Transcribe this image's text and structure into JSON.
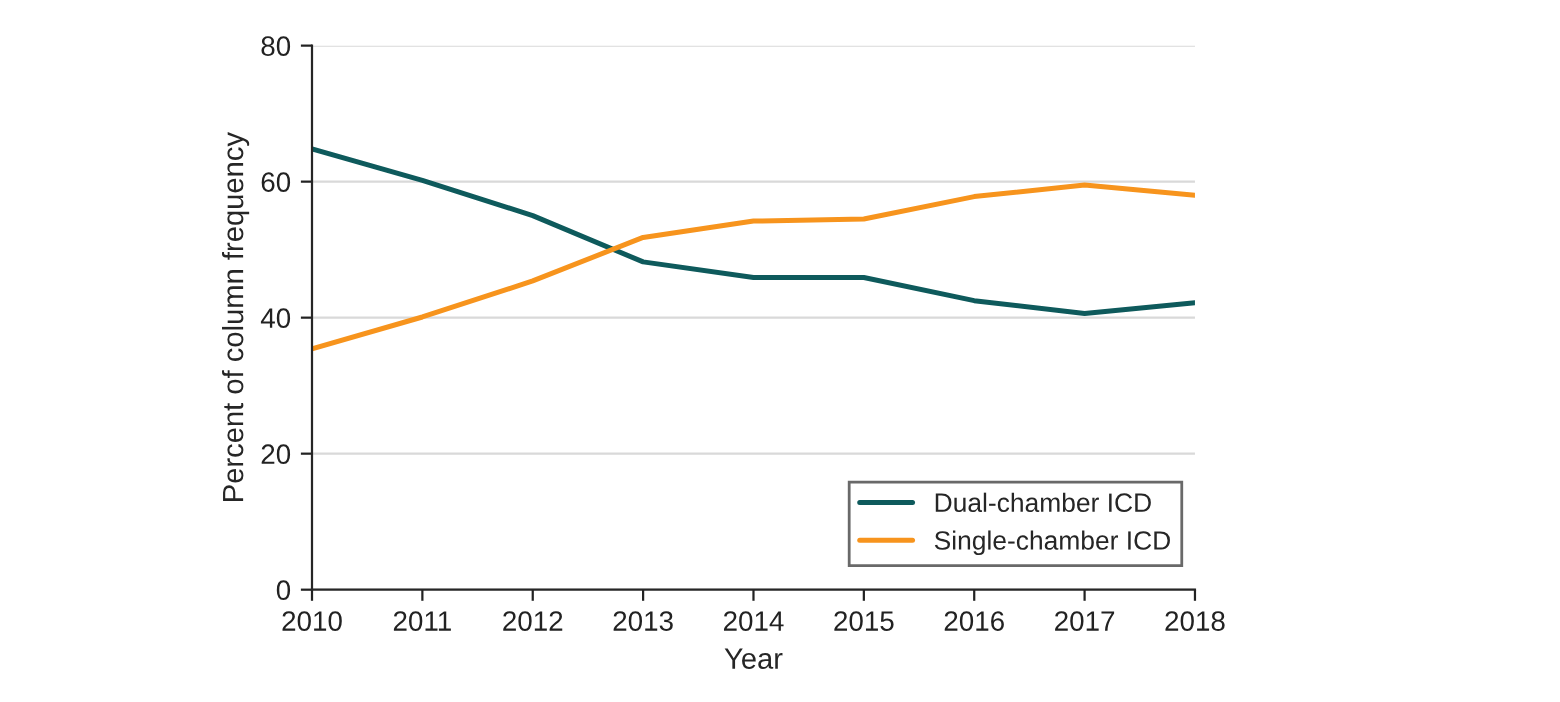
{
  "chart_data": {
    "type": "line",
    "xlabel": "Year",
    "ylabel": "Percent of column frequency",
    "x": [
      2010,
      2011,
      2012,
      2013,
      2014,
      2015,
      2016,
      2017,
      2018
    ],
    "xlim": [
      2010,
      2018
    ],
    "xticks": [
      2010,
      2011,
      2012,
      2013,
      2014,
      2015,
      2016,
      2017,
      2018
    ],
    "ylim": [
      0,
      80
    ],
    "yticks": [
      0,
      20,
      40,
      60,
      80
    ],
    "grid": "y",
    "legend": "bottom right",
    "marker": "none",
    "line_style": "solid",
    "series": [
      {
        "name": "Dual-chamber ICD",
        "color": "#0e5a5c",
        "values": [
          64.8,
          60.2,
          55.0,
          48.2,
          45.9,
          45.9,
          42.5,
          40.6,
          42.2
        ]
      },
      {
        "name": "Single-chamber ICD",
        "color": "#f7941d",
        "values": [
          35.4,
          40.1,
          45.4,
          51.8,
          54.2,
          54.5,
          57.8,
          59.5,
          58.0
        ]
      }
    ]
  }
}
